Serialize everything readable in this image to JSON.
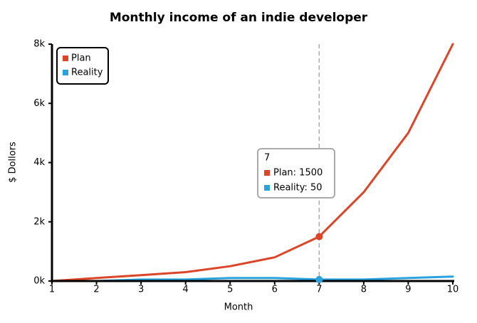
{
  "chart_data": {
    "type": "line",
    "title": "Monthly income of an indie developer",
    "x_label": "Month",
    "y_label": "$ Dollors",
    "x": [
      1,
      2,
      3,
      4,
      5,
      6,
      7,
      8,
      9,
      10
    ],
    "series": [
      {
        "name": "Plan",
        "color": "#dd4528",
        "values": [
          0,
          100,
          200,
          300,
          500,
          800,
          1500,
          3000,
          5000,
          8000
        ]
      },
      {
        "name": "Reality",
        "color": "#28a3dd",
        "values": [
          0,
          0,
          50,
          50,
          100,
          100,
          50,
          50,
          100,
          150
        ]
      }
    ],
    "xlim": [
      1,
      10
    ],
    "xticks": [
      1,
      2,
      3,
      4,
      5,
      6,
      7,
      8,
      9,
      10
    ],
    "ylim": [
      0,
      8000
    ],
    "yticks": [
      {
        "value": 0,
        "label": "0k"
      },
      {
        "value": 2000,
        "label": "2k"
      },
      {
        "value": 4000,
        "label": "4k"
      },
      {
        "value": 6000,
        "label": "6k"
      },
      {
        "value": 8000,
        "label": "8k"
      }
    ],
    "legend": "upper-left",
    "tooltip": {
      "x": 7,
      "lines": [
        "Plan: 1500",
        "Reality: 50"
      ]
    }
  }
}
